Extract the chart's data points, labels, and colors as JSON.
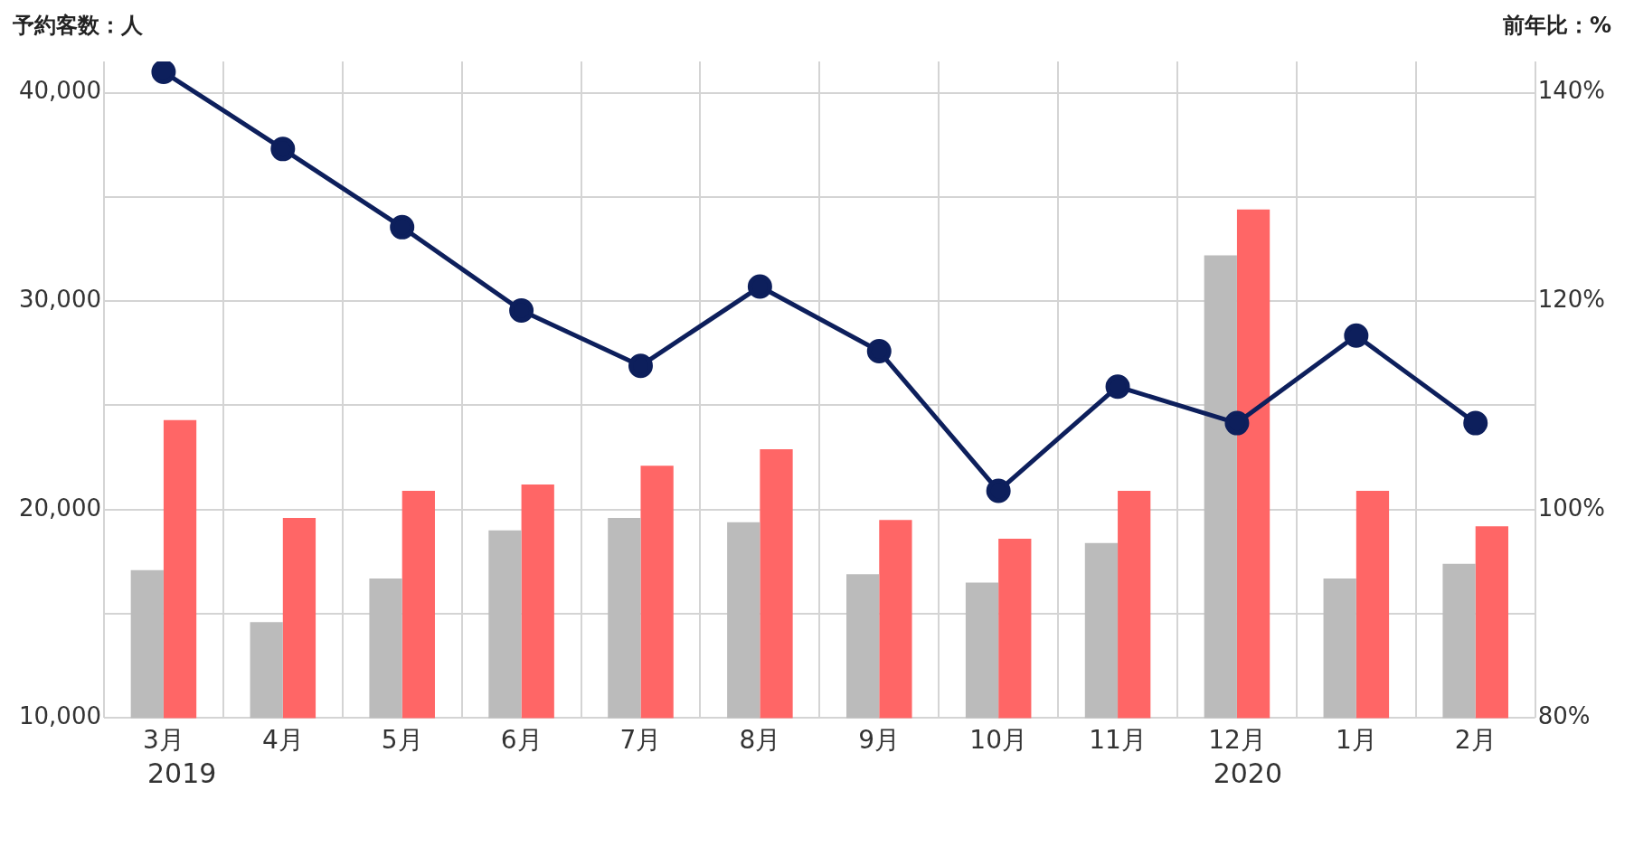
{
  "chart_data": {
    "type": "bar",
    "ylabel": "予約客数：人",
    "y2label": "前年比：%",
    "categories": [
      "3月",
      "4月",
      "5月",
      "6月",
      "7月",
      "8月",
      "9月",
      "10月",
      "11月",
      "12月",
      "1月",
      "2月"
    ],
    "series": [
      {
        "color": "#bbbbbb",
        "values": [
          17100,
          14600,
          16700,
          19000,
          19600,
          19400,
          16900,
          16500,
          18400,
          32200,
          16700,
          17400
        ]
      },
      {
        "color": "#ff6666",
        "values": [
          24300,
          19600,
          20900,
          21200,
          22100,
          22900,
          19500,
          18600,
          20900,
          34400,
          20900,
          19200
        ]
      },
      {
        "type": "line",
        "axis": "y2",
        "color": "#0d1f5c",
        "marker": "circle",
        "line_style": "solid",
        "values": [
          142.0,
          134.6,
          127.1,
          119.1,
          113.8,
          121.4,
          115.2,
          101.8,
          111.8,
          108.3,
          116.7,
          108.3
        ]
      }
    ],
    "ylim": [
      10000,
      41500
    ],
    "yticks": [
      {
        "value": 10000,
        "label": "10,000"
      },
      {
        "value": 15000,
        "label": null
      },
      {
        "value": 20000,
        "label": "20,000"
      },
      {
        "value": 25000,
        "label": null
      },
      {
        "value": 30000,
        "label": "30,000"
      },
      {
        "value": 35000,
        "label": null
      },
      {
        "value": 40000,
        "label": "40,000"
      }
    ],
    "y2lim": [
      80,
      143
    ],
    "y2ticks": [
      {
        "value": 80,
        "label": "80%"
      },
      {
        "value": 90,
        "label": null
      },
      {
        "value": 100,
        "label": "100%"
      },
      {
        "value": 110,
        "label": null
      },
      {
        "value": 120,
        "label": "120%"
      },
      {
        "value": 130,
        "label": null
      },
      {
        "value": 140,
        "label": "140%"
      }
    ],
    "grid": true,
    "legend": false,
    "annotations": [
      "2019",
      "2020"
    ]
  }
}
